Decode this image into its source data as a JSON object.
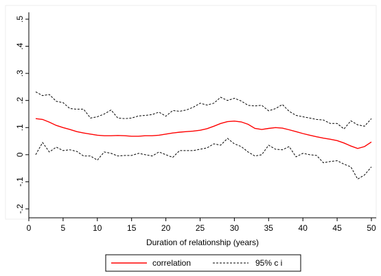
{
  "chart_data": {
    "type": "line",
    "xlabel": "Duration of relationship (years)",
    "ylabel": "",
    "xlim": [
      0,
      50
    ],
    "ylim": [
      -0.2,
      0.5
    ],
    "xticks": [
      0,
      5,
      10,
      15,
      20,
      25,
      30,
      35,
      40,
      45,
      50
    ],
    "xtick_labels": [
      "0",
      "5",
      "10",
      "15",
      "20",
      "25",
      "30",
      "35",
      "40",
      "45",
      "50"
    ],
    "yticks": [
      -0.2,
      -0.1,
      0,
      0.1,
      0.2,
      0.3,
      0.4,
      0.5
    ],
    "ytick_labels": [
      "-.2",
      "-.1",
      "0",
      ".1",
      ".2",
      ".3",
      ".4",
      ".5"
    ],
    "grid": false,
    "legend_position": "bottom",
    "series": [
      {
        "name": "correlation",
        "color": "#ff0000",
        "style": "solid",
        "x": [
          1,
          2,
          3,
          4,
          5,
          6,
          7,
          8,
          9,
          10,
          11,
          12,
          13,
          14,
          15,
          16,
          17,
          18,
          19,
          20,
          21,
          22,
          23,
          24,
          25,
          26,
          27,
          28,
          29,
          30,
          31,
          32,
          33,
          34,
          35,
          36,
          37,
          38,
          39,
          40,
          41,
          42,
          43,
          44,
          45,
          46,
          47,
          48,
          49,
          50
        ],
        "y": [
          0.133,
          0.13,
          0.12,
          0.108,
          0.1,
          0.093,
          0.085,
          0.08,
          0.076,
          0.072,
          0.07,
          0.07,
          0.071,
          0.07,
          0.068,
          0.068,
          0.07,
          0.07,
          0.072,
          0.076,
          0.08,
          0.083,
          0.085,
          0.087,
          0.09,
          0.096,
          0.105,
          0.115,
          0.122,
          0.124,
          0.121,
          0.112,
          0.097,
          0.093,
          0.097,
          0.1,
          0.098,
          0.092,
          0.085,
          0.078,
          0.072,
          0.066,
          0.061,
          0.057,
          0.052,
          0.043,
          0.032,
          0.023,
          0.03,
          0.047
        ]
      },
      {
        "name": "95% c i",
        "color": "#000000",
        "style": "dashed",
        "x": [
          1,
          2,
          3,
          4,
          5,
          6,
          7,
          8,
          9,
          10,
          11,
          12,
          13,
          14,
          15,
          16,
          17,
          18,
          19,
          20,
          21,
          22,
          23,
          24,
          25,
          26,
          27,
          28,
          29,
          30,
          31,
          32,
          33,
          34,
          35,
          36,
          37,
          38,
          39,
          40,
          41,
          42,
          43,
          44,
          45,
          46,
          47,
          48,
          49,
          50
        ],
        "y": [
          0.232,
          0.218,
          0.222,
          0.197,
          0.192,
          0.17,
          0.168,
          0.168,
          0.135,
          0.14,
          0.15,
          0.165,
          0.135,
          0.133,
          0.135,
          0.143,
          0.145,
          0.148,
          0.157,
          0.142,
          0.163,
          0.16,
          0.165,
          0.175,
          0.19,
          0.183,
          0.19,
          0.212,
          0.2,
          0.208,
          0.198,
          0.182,
          0.18,
          0.182,
          0.162,
          0.17,
          0.185,
          0.16,
          0.145,
          0.14,
          0.135,
          0.13,
          0.128,
          0.115,
          0.115,
          0.095,
          0.125,
          0.11,
          0.105,
          0.133
        ]
      },
      {
        "name": "95% c i lower",
        "color": "#000000",
        "style": "dashed",
        "x": [
          1,
          2,
          3,
          4,
          5,
          6,
          7,
          8,
          9,
          10,
          11,
          12,
          13,
          14,
          15,
          16,
          17,
          18,
          19,
          20,
          21,
          22,
          23,
          24,
          25,
          26,
          27,
          28,
          29,
          30,
          31,
          32,
          33,
          34,
          35,
          36,
          37,
          38,
          39,
          40,
          41,
          42,
          43,
          44,
          45,
          46,
          47,
          48,
          49,
          50
        ],
        "y": [
          0.0,
          0.045,
          0.01,
          0.028,
          0.015,
          0.018,
          0.012,
          -0.005,
          -0.005,
          -0.02,
          0.01,
          0.005,
          -0.005,
          -0.003,
          -0.003,
          0.005,
          0.0,
          -0.005,
          0.01,
          0.0,
          -0.01,
          0.015,
          0.015,
          0.015,
          0.02,
          0.025,
          0.04,
          0.035,
          0.06,
          0.04,
          0.03,
          0.01,
          -0.005,
          0.0,
          0.035,
          0.02,
          0.018,
          0.03,
          -0.008,
          0.005,
          0.0,
          -0.003,
          -0.03,
          -0.025,
          -0.022,
          -0.035,
          -0.045,
          -0.09,
          -0.075,
          -0.045
        ]
      }
    ],
    "legend": {
      "entries": [
        {
          "label": "correlation",
          "color": "#ff0000",
          "style": "solid"
        },
        {
          "label": "95% c i",
          "color": "#000000",
          "style": "dashed"
        }
      ]
    }
  }
}
